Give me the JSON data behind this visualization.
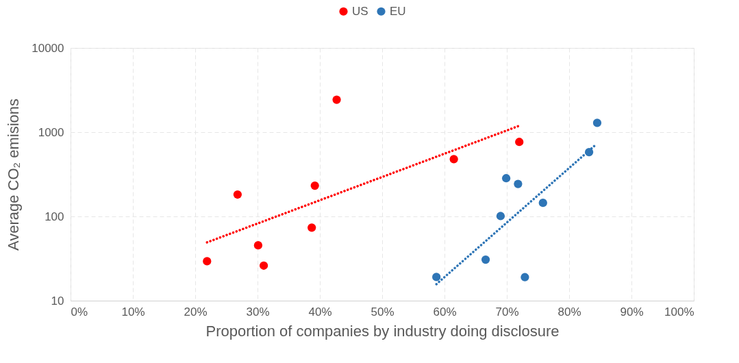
{
  "chart_data": {
    "type": "scatter",
    "xlabel": "Proportion of companies by industry doing disclosure",
    "ylabel": "Average CO₂ emisions",
    "xlim": [
      0,
      100
    ],
    "xticks": [
      {
        "value": 0,
        "label": "0%"
      },
      {
        "value": 10,
        "label": "10%"
      },
      {
        "value": 20,
        "label": "20%"
      },
      {
        "value": 30,
        "label": "30%"
      },
      {
        "value": 40,
        "label": "40%"
      },
      {
        "value": 50,
        "label": "50%"
      },
      {
        "value": 60,
        "label": "60%"
      },
      {
        "value": 70,
        "label": "70%"
      },
      {
        "value": 80,
        "label": "80%"
      },
      {
        "value": 90,
        "label": "90%"
      },
      {
        "value": 100,
        "label": "100%"
      }
    ],
    "ylim": [
      10,
      10000
    ],
    "yticks": [
      10,
      100,
      1000,
      10000
    ],
    "log": "y",
    "grid": true,
    "legend": "top",
    "marker": "circle",
    "series": [
      {
        "name": "US",
        "color": "#ff0000",
        "x": [
          21.9,
          26.8,
          30.1,
          31.0,
          38.7,
          39.2,
          42.7,
          61.5,
          72.0
        ],
        "values": [
          29.4,
          182,
          45.4,
          26.1,
          73.6,
          232,
          2430,
          479,
          766
        ]
      },
      {
        "name": "EU",
        "color": "#2e75b6",
        "x": [
          58.7,
          66.6,
          69.0,
          69.9,
          71.8,
          75.8,
          72.9,
          83.2,
          84.5
        ],
        "values": [
          19.1,
          30.7,
          101,
          284,
          243,
          145,
          19,
          580,
          1290
        ]
      },
      {
        "type": "line",
        "color": "#ff0000",
        "line_style": "dotted",
        "marker": "none",
        "x": [
          21.9,
          71.8
        ],
        "values": [
          49.2,
          1176
        ]
      },
      {
        "type": "line",
        "color": "#2e75b6",
        "line_style": "dotted",
        "marker": "none",
        "x": [
          58.7,
          84.4
        ],
        "values": [
          15.7,
          724
        ]
      }
    ]
  }
}
